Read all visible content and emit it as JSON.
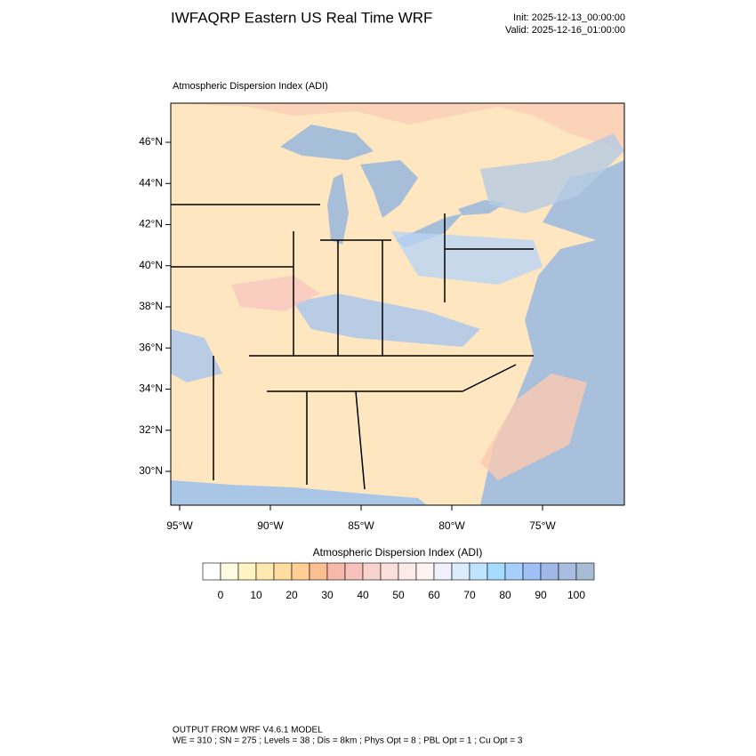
{
  "header": {
    "title": "IWFAQRP Eastern US Real Time WRF",
    "init": "Init: 2025-12-13_00:00:00",
    "valid": "Valid: 2025-12-16_01:00:00"
  },
  "map": {
    "subtitle": "Atmospheric Dispersion Index   (ADI)",
    "lat_labels": [
      "46°N",
      "44°N",
      "42°N",
      "40°N",
      "38°N",
      "36°N",
      "34°N",
      "32°N",
      "30°N"
    ],
    "lon_labels": [
      "95°W",
      "90°W",
      "85°W",
      "80°W",
      "75°W"
    ]
  },
  "colorbar": {
    "title": "Atmospheric Dispersion Index  (ADI)",
    "tick_labels": [
      "0",
      "10",
      "20",
      "30",
      "40",
      "50",
      "60",
      "70",
      "80",
      "90",
      "100"
    ],
    "colors": [
      "#ffffff",
      "#fffbe0",
      "#fff3c4",
      "#ffe9b0",
      "#ffdca0",
      "#ffcf94",
      "#fbbf90",
      "#f6b8a8",
      "#f5c3bc",
      "#f8d2cc",
      "#fbdfdb",
      "#fdebe8",
      "#fff4f2",
      "#f0f0ff",
      "#dcecff",
      "#bfe4ff",
      "#a6dcff",
      "#a6cfff",
      "#9ec0f5",
      "#a0b8e8",
      "#a9bde0",
      "#a8bcd4"
    ]
  },
  "footer": {
    "line1": "OUTPUT FROM WRF V4.6.1 MODEL",
    "line2": "WE = 310 ; SN = 275 ; Levels = 38 ; Dis = 8km ; Phys Opt = 8 ; PBL Opt = 1 ; Cu Opt = 3"
  }
}
